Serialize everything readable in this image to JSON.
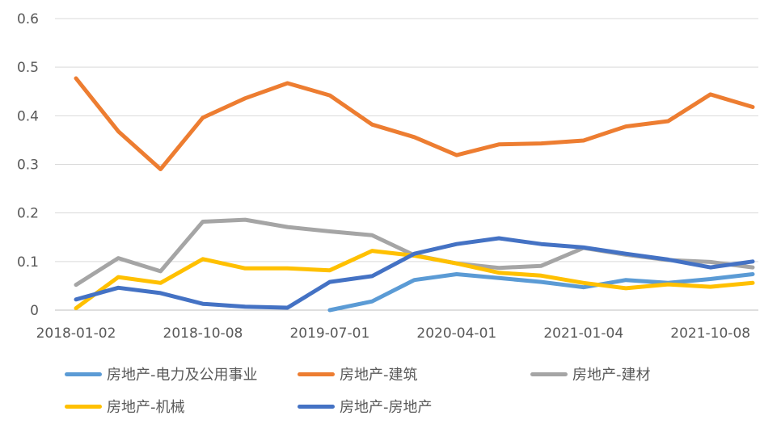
{
  "chart_data": {
    "type": "line",
    "title": "",
    "xlabel": "",
    "ylabel": "",
    "ylim": [
      0,
      0.6
    ],
    "yticks": [
      "0",
      "0.1",
      "0.2",
      "0.3",
      "0.4",
      "0.5",
      "0.6"
    ],
    "xtick_labels": [
      "2018-01-02",
      "2018-10-08",
      "2019-07-01",
      "2020-04-01",
      "2021-01-04",
      "2021-10-08"
    ],
    "grid": "horizontal",
    "legend_position": "bottom",
    "x": [
      "2018-01-02",
      "2018-04-02",
      "2018-07-02",
      "2018-10-08",
      "2019-01-02",
      "2019-04-01",
      "2019-07-01",
      "2019-10-08",
      "2020-01-02",
      "2020-04-01",
      "2020-07-01",
      "2020-10-09",
      "2021-01-04",
      "2021-04-01",
      "2021-07-01",
      "2021-10-08",
      "2022-01-04"
    ],
    "series": [
      {
        "name": "房地产-电力及公用事业",
        "color": "#5B9BD5",
        "values": [
          null,
          null,
          null,
          null,
          null,
          null,
          0.0,
          0.018,
          0.062,
          0.074,
          0.066,
          0.058,
          0.047,
          0.062,
          0.056,
          0.064,
          0.074
        ]
      },
      {
        "name": "房地产-建筑",
        "color": "#ED7D31",
        "values": [
          0.477,
          0.368,
          0.29,
          0.396,
          0.436,
          0.467,
          0.442,
          0.382,
          0.356,
          0.319,
          0.341,
          0.343,
          0.349,
          0.378,
          0.389,
          0.444,
          0.418
        ]
      },
      {
        "name": "房地产-建材",
        "color": "#A5A5A5",
        "values": [
          0.052,
          0.107,
          0.08,
          0.182,
          0.186,
          0.171,
          0.162,
          0.154,
          0.113,
          0.096,
          0.087,
          0.091,
          0.128,
          0.114,
          0.103,
          0.099,
          0.088
        ]
      },
      {
        "name": "房地产-机械",
        "color": "#FFC000",
        "values": [
          0.004,
          0.068,
          0.056,
          0.105,
          0.086,
          0.086,
          0.082,
          0.122,
          0.112,
          0.096,
          0.077,
          0.071,
          0.056,
          0.045,
          0.053,
          0.048,
          0.056
        ]
      },
      {
        "name": "房地产-房地产",
        "color": "#4472C4",
        "values": [
          0.022,
          0.046,
          0.035,
          0.013,
          0.007,
          0.005,
          0.058,
          0.07,
          0.116,
          0.136,
          0.148,
          0.136,
          0.129,
          0.116,
          0.104,
          0.088,
          0.1
        ]
      }
    ]
  }
}
